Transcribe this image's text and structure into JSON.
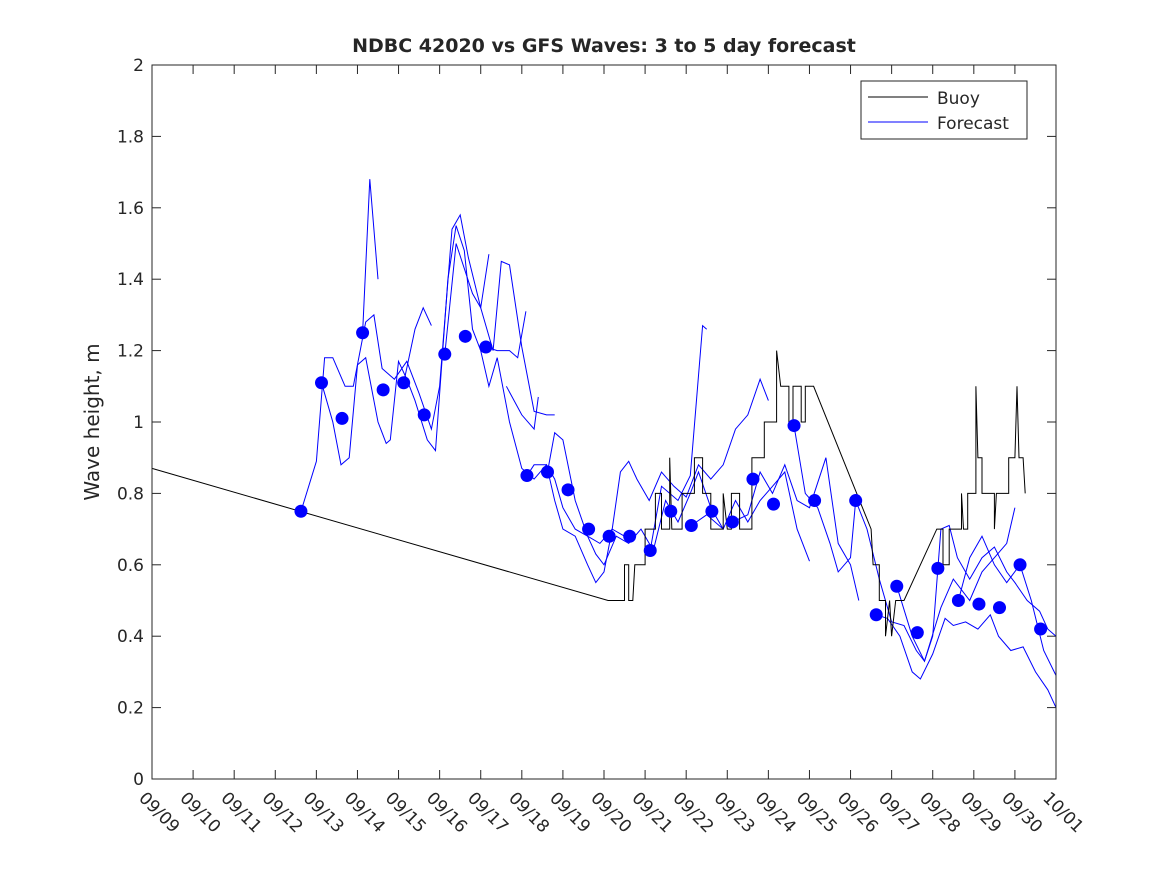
{
  "chart_data": {
    "type": "line",
    "title": "NDBC 42020 vs GFS Waves: 3 to 5 day forecast",
    "xlabel": "",
    "ylabel": "Wave height, m",
    "ylim": [
      0,
      2
    ],
    "yticks": [
      "0",
      "0.2",
      "0.4",
      "0.6",
      "0.8",
      "1",
      "1.2",
      "1.4",
      "1.6",
      "1.8",
      "2"
    ],
    "xlim_days": [
      0,
      22
    ],
    "xticks": [
      "09/09",
      "09/10",
      "09/11",
      "09/12",
      "09/13",
      "09/14",
      "09/15",
      "09/16",
      "09/17",
      "09/18",
      "09/19",
      "09/20",
      "09/21",
      "09/22",
      "09/23",
      "09/24",
      "09/25",
      "09/26",
      "09/27",
      "09/28",
      "09/29",
      "09/30",
      "10/01"
    ],
    "x_units": "days since 09/09",
    "legend": {
      "position": "top-right",
      "entries": [
        {
          "label": "Buoy",
          "color": "#000000"
        },
        {
          "label": "Forecast",
          "color": "#0000ff"
        }
      ]
    },
    "buoy": [
      [
        0,
        0.87
      ],
      [
        11.1,
        0.5
      ],
      [
        11.5,
        0.5
      ],
      [
        11.5,
        0.6
      ],
      [
        11.6,
        0.6
      ],
      [
        11.6,
        0.5
      ],
      [
        11.7,
        0.5
      ],
      [
        11.75,
        0.6
      ],
      [
        12.0,
        0.6
      ],
      [
        12.0,
        0.7
      ],
      [
        12.25,
        0.7
      ],
      [
        12.25,
        0.8
      ],
      [
        12.4,
        0.8
      ],
      [
        12.4,
        0.7
      ],
      [
        12.6,
        0.7
      ],
      [
        12.6,
        0.9
      ],
      [
        12.65,
        0.7
      ],
      [
        12.9,
        0.7
      ],
      [
        12.9,
        0.8
      ],
      [
        13.2,
        0.8
      ],
      [
        13.2,
        0.9
      ],
      [
        13.4,
        0.9
      ],
      [
        13.4,
        0.8
      ],
      [
        13.6,
        0.8
      ],
      [
        13.6,
        0.7
      ],
      [
        13.9,
        0.7
      ],
      [
        13.9,
        0.8
      ],
      [
        14.0,
        0.7
      ],
      [
        14.1,
        0.7
      ],
      [
        14.1,
        0.8
      ],
      [
        14.3,
        0.8
      ],
      [
        14.3,
        0.7
      ],
      [
        14.6,
        0.7
      ],
      [
        14.6,
        0.9
      ],
      [
        14.9,
        0.9
      ],
      [
        14.9,
        1.0
      ],
      [
        15.2,
        1.0
      ],
      [
        15.2,
        1.2
      ],
      [
        15.3,
        1.1
      ],
      [
        15.5,
        1.1
      ],
      [
        15.5,
        1.0
      ],
      [
        15.6,
        1.0
      ],
      [
        15.6,
        1.1
      ],
      [
        15.8,
        1.1
      ],
      [
        15.8,
        1.0
      ],
      [
        15.9,
        1.0
      ],
      [
        15.9,
        1.1
      ],
      [
        16.1,
        1.1
      ],
      [
        16.1,
        1.1
      ],
      [
        17.5,
        0.7
      ],
      [
        17.55,
        0.6
      ],
      [
        17.7,
        0.6
      ],
      [
        17.7,
        0.5
      ],
      [
        17.85,
        0.5
      ],
      [
        17.85,
        0.4
      ],
      [
        17.95,
        0.5
      ],
      [
        18.0,
        0.4
      ],
      [
        18.1,
        0.5
      ],
      [
        18.3,
        0.5
      ],
      [
        19.1,
        0.7
      ],
      [
        19.25,
        0.7
      ],
      [
        19.25,
        0.6
      ],
      [
        19.4,
        0.6
      ],
      [
        19.4,
        0.7
      ],
      [
        19.7,
        0.7
      ],
      [
        19.7,
        0.8
      ],
      [
        19.75,
        0.7
      ],
      [
        19.85,
        0.7
      ],
      [
        19.85,
        0.8
      ],
      [
        20.05,
        0.8
      ],
      [
        20.05,
        1.1
      ],
      [
        20.1,
        0.9
      ],
      [
        20.2,
        0.9
      ],
      [
        20.2,
        0.8
      ],
      [
        20.5,
        0.8
      ],
      [
        20.5,
        0.7
      ],
      [
        20.55,
        0.8
      ],
      [
        20.85,
        0.8
      ],
      [
        20.85,
        0.9
      ],
      [
        21.0,
        0.9
      ],
      [
        21.05,
        1.1
      ],
      [
        21.1,
        0.9
      ],
      [
        21.2,
        0.9
      ],
      [
        21.25,
        0.8
      ]
    ],
    "forecast_points": [
      [
        3.625,
        0.75
      ],
      [
        4.125,
        1.11
      ],
      [
        4.625,
        1.01
      ],
      [
        5.125,
        1.25
      ],
      [
        5.625,
        1.09
      ],
      [
        6.125,
        1.11
      ],
      [
        6.625,
        1.02
      ],
      [
        7.125,
        1.19
      ],
      [
        7.625,
        1.24
      ],
      [
        8.125,
        1.21
      ],
      [
        9.125,
        0.85
      ],
      [
        9.625,
        0.86
      ],
      [
        10.125,
        0.81
      ],
      [
        10.625,
        0.7
      ],
      [
        11.125,
        0.68
      ],
      [
        11.625,
        0.68
      ],
      [
        12.125,
        0.64
      ],
      [
        12.625,
        0.75
      ],
      [
        13.125,
        0.71
      ],
      [
        13.625,
        0.75
      ],
      [
        14.125,
        0.72
      ],
      [
        14.625,
        0.84
      ],
      [
        15.125,
        0.77
      ],
      [
        15.625,
        0.99
      ],
      [
        16.125,
        0.78
      ],
      [
        17.125,
        0.78
      ],
      [
        17.625,
        0.46
      ],
      [
        18.125,
        0.54
      ],
      [
        18.625,
        0.41
      ],
      [
        19.125,
        0.59
      ],
      [
        19.625,
        0.5
      ],
      [
        20.125,
        0.49
      ],
      [
        20.625,
        0.48
      ],
      [
        21.125,
        0.6
      ],
      [
        21.625,
        0.42
      ]
    ],
    "forecast_runs": [
      [
        [
          3.625,
          0.75
        ],
        [
          4.0,
          0.89
        ],
        [
          4.2,
          1.18
        ],
        [
          4.4,
          1.18
        ],
        [
          4.7,
          1.1
        ],
        [
          4.9,
          1.1
        ],
        [
          5.2,
          1.28
        ],
        [
          5.4,
          1.3
        ],
        [
          5.6,
          1.15
        ],
        [
          5.9,
          1.12
        ],
        [
          6.2,
          1.17
        ],
        [
          6.5,
          1.08
        ],
        [
          6.8,
          0.98
        ],
        [
          7.0,
          1.1
        ],
        [
          7.3,
          1.54
        ],
        [
          7.5,
          1.58
        ],
        [
          7.7,
          1.46
        ],
        [
          8.0,
          1.32
        ],
        [
          8.3,
          1.2
        ],
        [
          8.5,
          1.45
        ],
        [
          8.7,
          1.44
        ],
        [
          9.0,
          1.21
        ],
        [
          9.3,
          1.03
        ],
        [
          9.6,
          1.02
        ],
        [
          9.8,
          1.02
        ]
      ],
      [
        [
          4.125,
          1.11
        ],
        [
          4.4,
          1.0
        ],
        [
          4.6,
          0.88
        ],
        [
          4.8,
          0.9
        ],
        [
          5.0,
          1.16
        ],
        [
          5.2,
          1.18
        ],
        [
          5.5,
          1.0
        ],
        [
          5.7,
          0.94
        ],
        [
          5.8,
          0.95
        ],
        [
          6.0,
          1.17
        ],
        [
          6.2,
          1.12
        ],
        [
          6.4,
          1.06
        ],
        [
          6.7,
          0.95
        ],
        [
          6.9,
          0.92
        ],
        [
          7.2,
          1.4
        ],
        [
          7.4,
          1.55
        ],
        [
          7.6,
          1.48
        ],
        [
          7.8,
          1.26
        ],
        [
          8.0,
          1.2
        ],
        [
          8.2,
          1.1
        ],
        [
          8.4,
          1.18
        ],
        [
          8.7,
          1.0
        ],
        [
          9.0,
          0.87
        ],
        [
          9.3,
          0.84
        ],
        [
          9.6,
          0.88
        ],
        [
          9.8,
          0.78
        ],
        [
          10.0,
          0.7
        ],
        [
          10.3,
          0.68
        ],
        [
          10.6,
          0.6
        ],
        [
          10.8,
          0.55
        ],
        [
          11.0,
          0.58
        ],
        [
          11.2,
          0.7
        ],
        [
          11.5,
          0.68
        ]
      ],
      [
        [
          5.125,
          1.25
        ],
        [
          5.3,
          1.68
        ],
        [
          5.5,
          1.4
        ]
      ],
      [
        [
          6.125,
          1.11
        ],
        [
          6.4,
          1.26
        ],
        [
          6.6,
          1.32
        ],
        [
          6.8,
          1.27
        ]
      ],
      [
        [
          7.125,
          1.19
        ],
        [
          7.4,
          1.5
        ],
        [
          7.8,
          1.36
        ],
        [
          8.0,
          1.32
        ],
        [
          8.2,
          1.47
        ]
      ],
      [
        [
          8.125,
          1.21
        ],
        [
          8.4,
          1.2
        ],
        [
          8.7,
          1.2
        ],
        [
          8.9,
          1.18
        ],
        [
          9.1,
          1.31
        ]
      ],
      [
        [
          8.625,
          1.1
        ],
        [
          9.0,
          1.02
        ],
        [
          9.3,
          0.98
        ],
        [
          9.4,
          1.07
        ]
      ],
      [
        [
          9.125,
          0.85
        ],
        [
          9.3,
          0.88
        ],
        [
          9.6,
          0.88
        ],
        [
          9.8,
          0.84
        ],
        [
          10.0,
          0.76
        ],
        [
          10.3,
          0.7
        ],
        [
          10.6,
          0.68
        ],
        [
          10.8,
          0.63
        ],
        [
          11.0,
          0.6
        ],
        [
          11.3,
          0.68
        ],
        [
          11.6,
          0.66
        ],
        [
          11.9,
          0.7
        ],
        [
          12.2,
          0.64
        ],
        [
          12.5,
          0.78
        ],
        [
          12.8,
          0.72
        ],
        [
          13.1,
          0.8
        ],
        [
          13.3,
          0.86
        ],
        [
          13.6,
          0.76
        ],
        [
          13.9,
          0.7
        ]
      ],
      [
        [
          9.625,
          0.86
        ],
        [
          9.8,
          0.97
        ],
        [
          10.0,
          0.95
        ],
        [
          10.3,
          0.78
        ],
        [
          10.6,
          0.68
        ],
        [
          10.9,
          0.66
        ],
        [
          11.2,
          0.7
        ],
        [
          11.4,
          0.86
        ],
        [
          11.6,
          0.89
        ],
        [
          11.8,
          0.84
        ],
        [
          12.1,
          0.78
        ],
        [
          12.4,
          0.86
        ],
        [
          12.7,
          0.82
        ],
        [
          13.0,
          0.79
        ],
        [
          13.3,
          0.88
        ],
        [
          13.6,
          0.84
        ],
        [
          13.9,
          0.88
        ],
        [
          14.2,
          0.98
        ],
        [
          14.5,
          1.02
        ],
        [
          14.8,
          1.12
        ],
        [
          15.0,
          1.06
        ]
      ],
      [
        [
          12.125,
          0.64
        ],
        [
          12.4,
          0.82
        ],
        [
          12.8,
          0.78
        ],
        [
          13.1,
          0.85
        ],
        [
          13.4,
          1.27
        ],
        [
          13.5,
          1.26
        ]
      ],
      [
        [
          13.125,
          0.71
        ],
        [
          13.5,
          0.74
        ],
        [
          13.9,
          0.7
        ],
        [
          14.2,
          0.78
        ],
        [
          14.5,
          0.72
        ],
        [
          14.8,
          0.78
        ],
        [
          15.1,
          0.82
        ],
        [
          15.4,
          0.86
        ],
        [
          15.7,
          0.7
        ],
        [
          16.0,
          0.61
        ]
      ],
      [
        [
          14.125,
          0.72
        ],
        [
          14.5,
          0.74
        ],
        [
          14.8,
          0.86
        ],
        [
          15.1,
          0.8
        ],
        [
          15.4,
          0.88
        ],
        [
          15.7,
          0.78
        ],
        [
          16.0,
          0.76
        ],
        [
          16.4,
          0.9
        ],
        [
          16.7,
          0.66
        ],
        [
          17.0,
          0.6
        ],
        [
          17.2,
          0.5
        ]
      ],
      [
        [
          15.625,
          0.99
        ],
        [
          15.9,
          0.8
        ],
        [
          16.2,
          0.76
        ],
        [
          16.5,
          0.66
        ],
        [
          16.7,
          0.58
        ],
        [
          17.0,
          0.62
        ],
        [
          17.125,
          0.78
        ],
        [
          17.4,
          0.7
        ],
        [
          17.7,
          0.56
        ],
        [
          18.0,
          0.44
        ],
        [
          18.3,
          0.43
        ],
        [
          18.6,
          0.36
        ],
        [
          18.8,
          0.33
        ],
        [
          19.0,
          0.4
        ],
        [
          19.2,
          0.7
        ],
        [
          19.4,
          0.71
        ],
        [
          19.6,
          0.62
        ],
        [
          19.9,
          0.56
        ],
        [
          20.2,
          0.62
        ],
        [
          20.5,
          0.65
        ],
        [
          20.8,
          0.58
        ],
        [
          21.0,
          0.55
        ],
        [
          21.3,
          0.5
        ],
        [
          21.6,
          0.47
        ],
        [
          21.8,
          0.42
        ],
        [
          22.0,
          0.4
        ]
      ],
      [
        [
          17.625,
          0.46
        ],
        [
          17.9,
          0.45
        ],
        [
          18.2,
          0.4
        ],
        [
          18.5,
          0.3
        ],
        [
          18.7,
          0.28
        ],
        [
          19.0,
          0.35
        ],
        [
          19.3,
          0.45
        ],
        [
          19.5,
          0.43
        ],
        [
          19.8,
          0.44
        ],
        [
          20.1,
          0.42
        ],
        [
          20.4,
          0.46
        ],
        [
          20.6,
          0.4
        ],
        [
          20.9,
          0.36
        ],
        [
          21.2,
          0.37
        ],
        [
          21.5,
          0.3
        ],
        [
          21.8,
          0.25
        ],
        [
          22.0,
          0.2
        ]
      ],
      [
        [
          18.125,
          0.54
        ],
        [
          18.5,
          0.4
        ],
        [
          18.8,
          0.33
        ],
        [
          19.2,
          0.48
        ],
        [
          19.5,
          0.56
        ],
        [
          19.9,
          0.5
        ],
        [
          20.2,
          0.58
        ],
        [
          20.5,
          0.62
        ],
        [
          20.8,
          0.66
        ],
        [
          21.0,
          0.76
        ]
      ],
      [
        [
          19.625,
          0.5
        ],
        [
          19.9,
          0.62
        ],
        [
          20.2,
          0.68
        ],
        [
          20.5,
          0.6
        ],
        [
          20.8,
          0.55
        ],
        [
          21.125,
          0.6
        ],
        [
          21.4,
          0.5
        ],
        [
          21.7,
          0.36
        ],
        [
          22.0,
          0.29
        ]
      ]
    ]
  }
}
